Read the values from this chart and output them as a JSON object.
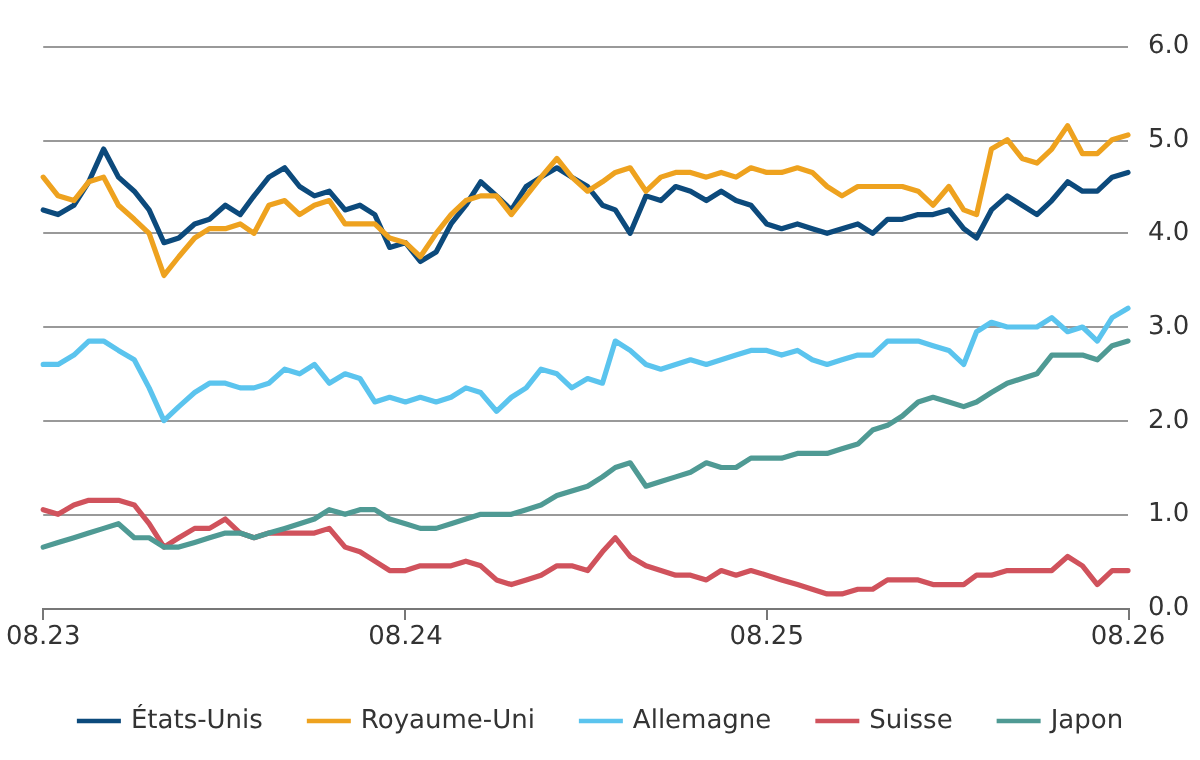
{
  "chart_data": {
    "type": "line",
    "x": [
      "2023-08-01",
      "2023-08-16",
      "2023-09-01",
      "2023-09-16",
      "2023-10-01",
      "2023-10-16",
      "2023-11-01",
      "2023-11-16",
      "2023-12-01",
      "2023-12-16",
      "2024-01-01",
      "2024-01-16",
      "2024-02-01",
      "2024-02-16",
      "2024-03-01",
      "2024-03-16",
      "2024-04-01",
      "2024-04-16",
      "2024-05-01",
      "2024-05-16",
      "2024-06-01",
      "2024-06-16",
      "2024-07-01",
      "2024-07-16",
      "2024-08-01",
      "2024-08-16",
      "2024-09-01",
      "2024-09-16",
      "2024-10-01",
      "2024-10-16",
      "2024-11-01",
      "2024-11-16",
      "2024-12-01",
      "2024-12-16",
      "2025-01-01",
      "2025-01-16",
      "2025-02-01",
      "2025-02-16",
      "2025-03-01",
      "2025-03-16",
      "2025-04-01",
      "2025-04-16",
      "2025-05-01",
      "2025-05-16",
      "2025-06-01",
      "2025-06-16",
      "2025-07-01",
      "2025-07-16",
      "2025-08-01",
      "2025-08-16",
      "2025-09-01",
      "2025-09-16",
      "2025-10-01",
      "2025-10-16",
      "2025-11-01",
      "2025-11-16",
      "2025-12-01",
      "2025-12-16",
      "2026-01-01",
      "2026-01-16",
      "2026-02-01",
      "2026-02-16",
      "2026-03-01",
      "2026-03-16",
      "2026-04-01",
      "2026-04-16",
      "2026-05-01",
      "2026-05-16",
      "2026-06-01",
      "2026-06-16",
      "2026-07-01",
      "2026-07-16",
      "2026-08-01"
    ],
    "series": [
      {
        "name": "États-Unis",
        "color": "#0c4a7c",
        "values": [
          4.25,
          4.2,
          4.3,
          4.55,
          4.9,
          4.6,
          4.45,
          4.25,
          3.9,
          3.95,
          4.1,
          4.15,
          4.3,
          4.2,
          4.4,
          4.6,
          4.7,
          4.5,
          4.4,
          4.45,
          4.25,
          4.3,
          4.2,
          3.85,
          3.9,
          3.7,
          3.8,
          4.1,
          4.3,
          4.55,
          4.4,
          4.25,
          4.5,
          4.6,
          4.7,
          4.6,
          4.5,
          4.3,
          4.25,
          4.0,
          4.4,
          4.35,
          4.5,
          4.45,
          4.35,
          4.45,
          4.35,
          4.3,
          4.1,
          4.05,
          4.1,
          4.05,
          4.0,
          4.05,
          4.1,
          4.0,
          4.15,
          4.15,
          4.2,
          4.2,
          4.25,
          4.05,
          3.95,
          4.25,
          4.4,
          4.3,
          4.2,
          4.35,
          4.55,
          4.45,
          4.45,
          4.6,
          4.65
        ]
      },
      {
        "name": "Royaume-Uni",
        "color": "#eea21f",
        "values": [
          4.6,
          4.4,
          4.35,
          4.55,
          4.6,
          4.3,
          4.15,
          4.0,
          3.55,
          3.75,
          3.95,
          4.05,
          4.05,
          4.1,
          4.0,
          4.3,
          4.35,
          4.2,
          4.3,
          4.35,
          4.1,
          4.1,
          4.1,
          3.95,
          3.9,
          3.75,
          4.0,
          4.2,
          4.35,
          4.4,
          4.4,
          4.2,
          4.4,
          4.6,
          4.8,
          4.6,
          4.45,
          4.55,
          4.65,
          4.7,
          4.45,
          4.6,
          4.65,
          4.65,
          4.6,
          4.65,
          4.6,
          4.7,
          4.65,
          4.65,
          4.7,
          4.65,
          4.5,
          4.4,
          4.5,
          4.5,
          4.5,
          4.5,
          4.45,
          4.3,
          4.5,
          4.25,
          4.2,
          4.9,
          5.0,
          4.8,
          4.75,
          4.9,
          5.15,
          4.85,
          4.85,
          5.0,
          5.05
        ]
      },
      {
        "name": "Allemagne",
        "color": "#5bc4ee",
        "values": [
          2.6,
          2.6,
          2.7,
          2.85,
          2.85,
          2.75,
          2.65,
          2.35,
          2.0,
          2.15,
          2.3,
          2.4,
          2.4,
          2.35,
          2.35,
          2.4,
          2.55,
          2.5,
          2.6,
          2.4,
          2.5,
          2.45,
          2.2,
          2.25,
          2.2,
          2.25,
          2.2,
          2.25,
          2.35,
          2.3,
          2.1,
          2.25,
          2.35,
          2.55,
          2.5,
          2.35,
          2.45,
          2.4,
          2.85,
          2.75,
          2.6,
          2.55,
          2.6,
          2.65,
          2.6,
          2.65,
          2.7,
          2.75,
          2.75,
          2.7,
          2.75,
          2.65,
          2.6,
          2.65,
          2.7,
          2.7,
          2.85,
          2.85,
          2.85,
          2.8,
          2.75,
          2.6,
          2.95,
          3.05,
          3.0,
          3.0,
          3.0,
          3.1,
          2.95,
          3.0,
          2.85,
          3.1,
          3.2
        ]
      },
      {
        "name": "Suisse",
        "color": "#d0525c",
        "values": [
          1.05,
          1.0,
          1.1,
          1.15,
          1.15,
          1.15,
          1.1,
          0.9,
          0.65,
          0.75,
          0.85,
          0.85,
          0.95,
          0.8,
          0.75,
          0.8,
          0.8,
          0.8,
          0.8,
          0.85,
          0.65,
          0.6,
          0.5,
          0.4,
          0.4,
          0.45,
          0.45,
          0.45,
          0.5,
          0.45,
          0.3,
          0.25,
          0.3,
          0.35,
          0.45,
          0.45,
          0.4,
          0.6,
          0.75,
          0.55,
          0.45,
          0.4,
          0.35,
          0.35,
          0.3,
          0.4,
          0.35,
          0.4,
          0.35,
          0.3,
          0.25,
          0.2,
          0.15,
          0.15,
          0.2,
          0.2,
          0.3,
          0.3,
          0.3,
          0.25,
          0.25,
          0.25,
          0.35,
          0.35,
          0.4,
          0.4,
          0.4,
          0.4,
          0.55,
          0.45,
          0.25,
          0.4,
          0.4
        ]
      },
      {
        "name": "Japon",
        "color": "#4f9a94",
        "values": [
          0.65,
          0.7,
          0.75,
          0.8,
          0.85,
          0.9,
          0.75,
          0.75,
          0.65,
          0.65,
          0.7,
          0.75,
          0.8,
          0.8,
          0.75,
          0.8,
          0.85,
          0.9,
          0.95,
          1.05,
          1.0,
          1.05,
          1.05,
          0.95,
          0.9,
          0.85,
          0.85,
          0.9,
          0.95,
          1.0,
          1.0,
          1.0,
          1.05,
          1.1,
          1.2,
          1.25,
          1.3,
          1.4,
          1.5,
          1.55,
          1.3,
          1.35,
          1.4,
          1.45,
          1.55,
          1.5,
          1.5,
          1.6,
          1.6,
          1.6,
          1.65,
          1.65,
          1.65,
          1.7,
          1.75,
          1.9,
          1.95,
          2.05,
          2.2,
          2.25,
          2.2,
          2.15,
          2.2,
          2.3,
          2.4,
          2.45,
          2.5,
          2.7,
          2.7,
          2.7,
          2.65,
          2.8,
          2.85
        ]
      }
    ],
    "xlim": [
      "2023-08-01",
      "2026-08-01"
    ],
    "xticks": [
      {
        "value": "2023-08-01",
        "label": "08.23"
      },
      {
        "value": "2024-08-01",
        "label": "08.24"
      },
      {
        "value": "2025-08-01",
        "label": "08.25"
      },
      {
        "value": "2026-08-01",
        "label": "08.26"
      }
    ],
    "ylim": [
      0,
      6
    ],
    "yticks": [
      {
        "value": 0,
        "label": "0.0"
      },
      {
        "value": 1,
        "label": "1.0"
      },
      {
        "value": 2,
        "label": "2.0"
      },
      {
        "value": 3,
        "label": "3.0"
      },
      {
        "value": 4,
        "label": "4.0"
      },
      {
        "value": 5,
        "label": "5.0"
      },
      {
        "value": 6,
        "label": "6.0"
      }
    ],
    "grid": "y",
    "legend": "bottom",
    "marker": "none",
    "line_style": "solid"
  }
}
